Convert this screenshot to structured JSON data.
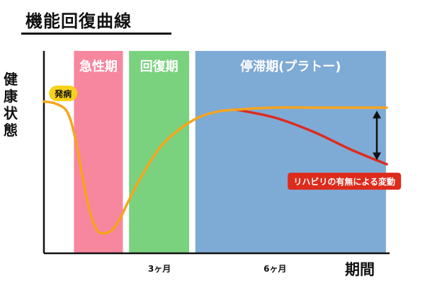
{
  "title": "機能回復曲線",
  "chart_data": {
    "type": "line",
    "title": "機能回復曲線",
    "xlabel": "期間",
    "ylabel": "健康状態",
    "xlim": [
      0,
      8.9
    ],
    "ylim": [
      0,
      100
    ],
    "grid": false,
    "x_ticks": [
      {
        "value": 3,
        "label": "3ヶ月"
      },
      {
        "value": 6,
        "label": "6ヶ月"
      }
    ],
    "phases": [
      {
        "label": "急性期",
        "start": 0.78,
        "end": 2.05,
        "color": "#F7869F"
      },
      {
        "label": "回復期",
        "start": 2.21,
        "end": 3.77,
        "color": "#7AD27E"
      },
      {
        "label": "停滞期(プラトー)",
        "start": 3.93,
        "end": 8.88,
        "color": "#7EAAD6"
      }
    ],
    "series": [
      {
        "color": "#F5A51C",
        "x": [
          0,
          0.3,
          0.6,
          0.8,
          1.0,
          1.2,
          1.4,
          1.6,
          1.8,
          2.0,
          2.2,
          2.5,
          3.0,
          3.5,
          4.0,
          4.5,
          5.0,
          6.0,
          7.0,
          8.0,
          8.9
        ],
        "y": [
          75,
          74,
          70,
          58,
          38,
          20,
          11,
          10,
          12,
          18,
          26,
          37,
          52,
          61,
          67,
          70,
          71,
          72,
          72,
          72,
          72
        ]
      },
      {
        "color": "#DD2B1C",
        "x": [
          5.0,
          6.0,
          7.0,
          8.0,
          8.9
        ],
        "y": [
          71,
          67,
          60,
          51,
          44
        ]
      }
    ],
    "annotations": [
      {
        "text": "発病",
        "x": 0.5,
        "y": 79
      },
      {
        "text": "リハビリの有無による変動",
        "x": 7.8,
        "y": 37
      }
    ]
  }
}
